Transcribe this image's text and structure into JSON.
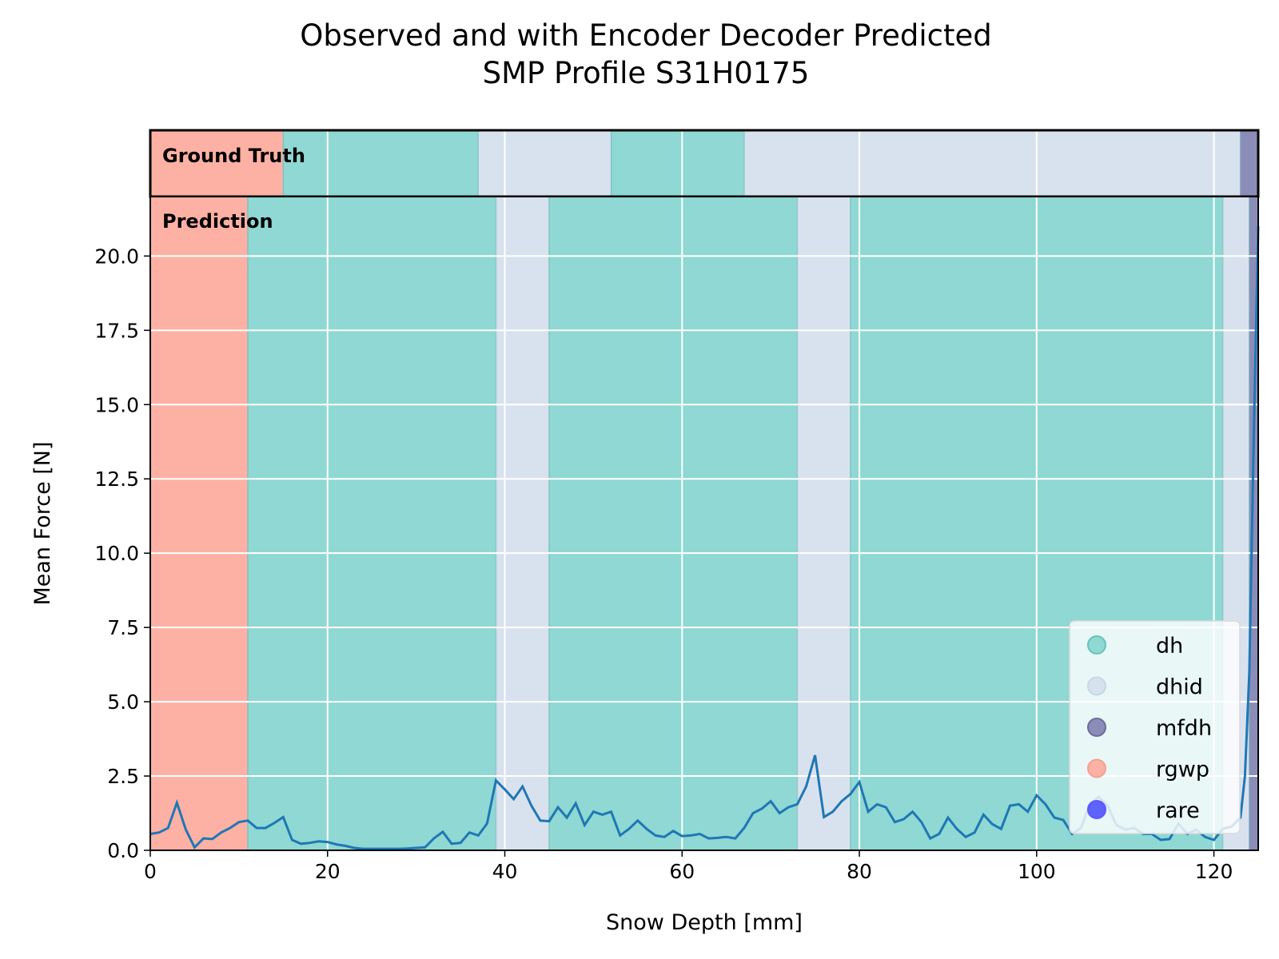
{
  "chart_data": {
    "type": "line",
    "title": "Observed and with Encoder Decoder Predicted",
    "subtitle": "SMP Profile S31H0175",
    "xlabel": "Snow Depth [mm]",
    "ylabel": "Mean Force [N]",
    "xlim": [
      0,
      125
    ],
    "ylim": [
      0,
      22.0
    ],
    "xticks": [
      0,
      20,
      40,
      60,
      80,
      100,
      120
    ],
    "xtick_labels": [
      "0",
      "20",
      "40",
      "60",
      "80",
      "100",
      "120"
    ],
    "yticks": [
      0,
      2.5,
      5,
      7.5,
      10,
      12.5,
      15,
      17.5,
      20
    ],
    "ytick_labels": [
      "0.0",
      "2.5",
      "5.0",
      "7.5",
      "10.0",
      "12.5",
      "15.0",
      "17.5",
      "20.0"
    ],
    "grid": true,
    "legend_position": "lower-right",
    "label_colors": {
      "dh": "#8fd8d3",
      "dhid": "#d8e2ee",
      "mfdh": "#8b8db8",
      "rgwp": "#fdb1a4",
      "rare": "#0000ff"
    },
    "legend": [
      {
        "label": "dh",
        "color": "#8fd8d3",
        "marker_color": "#66c2ba"
      },
      {
        "label": "dhid",
        "color": "#d8e2ee",
        "marker_color": "#c9d6e8"
      },
      {
        "label": "mfdh",
        "color": "#8b8db8",
        "marker_color": "#6a6d9c"
      },
      {
        "label": "rgwp",
        "color": "#fdb1a4",
        "marker_color": "#f4a090"
      },
      {
        "label": "rare",
        "color": "#0000ff",
        "marker_color": "#5a5aff"
      }
    ],
    "ground_truth": {
      "label": "Ground Truth",
      "segments": [
        {
          "start": 0,
          "end": 15,
          "class": "rgwp"
        },
        {
          "start": 15,
          "end": 37,
          "class": "dh"
        },
        {
          "start": 37,
          "end": 52,
          "class": "dhid"
        },
        {
          "start": 52,
          "end": 67,
          "class": "dh"
        },
        {
          "start": 67,
          "end": 123,
          "class": "dhid"
        },
        {
          "start": 123,
          "end": 125,
          "class": "mfdh"
        }
      ]
    },
    "prediction": {
      "label": "Prediction",
      "segments": [
        {
          "start": 0,
          "end": 11,
          "class": "rgwp"
        },
        {
          "start": 11,
          "end": 39,
          "class": "dh"
        },
        {
          "start": 39,
          "end": 45,
          "class": "dhid"
        },
        {
          "start": 45,
          "end": 73,
          "class": "dh"
        },
        {
          "start": 73,
          "end": 79,
          "class": "dhid"
        },
        {
          "start": 79,
          "end": 121,
          "class": "dh"
        },
        {
          "start": 121,
          "end": 124,
          "class": "dhid"
        },
        {
          "start": 124,
          "end": 125,
          "class": "mfdh"
        }
      ]
    },
    "series": [
      {
        "line_color": "#1f77b4",
        "x": [
          0,
          1,
          2,
          3,
          4,
          5,
          6,
          7,
          8,
          9,
          10,
          11,
          12,
          13,
          14,
          15,
          16,
          17,
          18,
          19,
          20,
          21,
          22,
          23,
          24,
          25,
          26,
          27,
          28,
          29,
          30,
          31,
          32,
          33,
          34,
          35,
          36,
          37,
          38,
          39,
          40,
          41,
          42,
          43,
          44,
          45,
          46,
          47,
          48,
          49,
          50,
          51,
          52,
          53,
          54,
          55,
          56,
          57,
          58,
          59,
          60,
          61,
          62,
          63,
          64,
          65,
          66,
          67,
          68,
          69,
          70,
          71,
          72,
          73,
          74,
          75,
          76,
          77,
          78,
          79,
          80,
          81,
          82,
          83,
          84,
          85,
          86,
          87,
          88,
          89,
          90,
          91,
          92,
          93,
          94,
          95,
          96,
          97,
          98,
          99,
          100,
          101,
          102,
          103,
          104,
          105,
          106,
          107,
          108,
          109,
          110,
          111,
          112,
          113,
          114,
          115,
          116,
          117,
          118,
          119,
          120,
          121,
          122,
          123,
          123.5,
          124,
          124.5,
          125
        ],
        "y": [
          0.55,
          0.6,
          0.75,
          1.6,
          0.7,
          0.1,
          0.4,
          0.38,
          0.6,
          0.75,
          0.95,
          1.0,
          0.75,
          0.75,
          0.92,
          1.12,
          0.35,
          0.22,
          0.25,
          0.3,
          0.28,
          0.2,
          0.15,
          0.08,
          0.05,
          0.05,
          0.05,
          0.05,
          0.05,
          0.06,
          0.08,
          0.1,
          0.4,
          0.62,
          0.22,
          0.25,
          0.6,
          0.5,
          0.9,
          2.35,
          2.05,
          1.72,
          2.15,
          1.5,
          1.0,
          0.98,
          1.45,
          1.1,
          1.58,
          0.85,
          1.3,
          1.2,
          1.3,
          0.5,
          0.72,
          1.0,
          0.72,
          0.5,
          0.45,
          0.65,
          0.48,
          0.5,
          0.55,
          0.4,
          0.42,
          0.45,
          0.4,
          0.75,
          1.25,
          1.4,
          1.65,
          1.25,
          1.45,
          1.55,
          2.15,
          3.2,
          1.12,
          1.3,
          1.65,
          1.9,
          2.3,
          1.3,
          1.55,
          1.45,
          0.95,
          1.05,
          1.3,
          0.95,
          0.4,
          0.55,
          1.1,
          0.72,
          0.45,
          0.6,
          1.2,
          0.88,
          0.72,
          1.5,
          1.55,
          1.3,
          1.85,
          1.55,
          1.1,
          1.02,
          0.55,
          0.75,
          1.55,
          1.8,
          1.5,
          0.85,
          0.7,
          0.75,
          0.55,
          0.55,
          0.35,
          0.38,
          0.9,
          0.55,
          0.7,
          0.45,
          0.35,
          0.72,
          0.8,
          1.1,
          2.5,
          6.0,
          14.0,
          21.0
        ]
      }
    ]
  }
}
